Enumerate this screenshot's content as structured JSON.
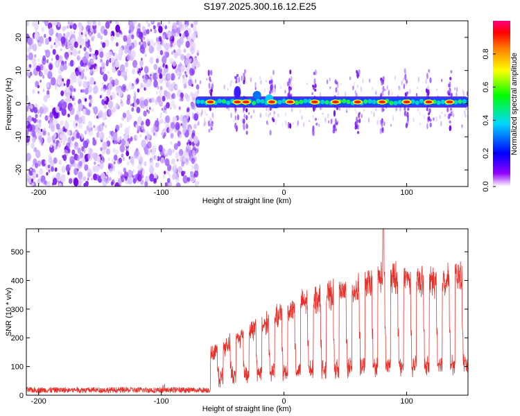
{
  "title": "S197.2025.300.16.12.E25",
  "chart_data": [
    {
      "type": "heatmap",
      "name": "spectrogram",
      "xlabel": "Height of straight line (km)",
      "ylabel": "Frequency (Hz)",
      "xlim": [
        -210,
        150
      ],
      "ylim": [
        -25,
        25
      ],
      "xticks": [
        -200,
        -100,
        0,
        100
      ],
      "yticks": [
        -20,
        -10,
        0,
        10,
        20
      ],
      "noise_region": [
        -210,
        -72
      ],
      "signal_start": -72,
      "signal_center_freq": 0.5,
      "colorbar": {
        "label": "Normalized spectral amplitude",
        "range": [
          0,
          1
        ],
        "ticks": [
          "0.0",
          "0.2",
          "0.4",
          "0.6",
          "0.8"
        ],
        "colors": [
          "#ffffff",
          "#8000ff",
          "#0000ff",
          "#00ffff",
          "#00ff00",
          "#ffff00",
          "#ff8000",
          "#ff0000",
          "#ff0080"
        ]
      },
      "signal_clusters_x": [
        -60,
        -38,
        -31,
        -10,
        5,
        25,
        42,
        60,
        80,
        100,
        118,
        135
      ]
    },
    {
      "type": "line",
      "name": "snr",
      "xlabel": "Height of straight line (km)",
      "ylabel": "SNR (10 * v/v)",
      "xlim": [
        -210,
        150
      ],
      "ylim": [
        0,
        580
      ],
      "xticks": [
        -200,
        -100,
        0,
        100
      ],
      "yticks": [
        0,
        100,
        200,
        300,
        400,
        500
      ],
      "color": "#e8302a",
      "series": [
        {
          "name": "noise floor",
          "x_range": [
            -210,
            -60
          ],
          "mean": 18,
          "spread": 10
        },
        {
          "name": "signal envelope",
          "x": [
            -60,
            -40,
            -20,
            0,
            20,
            40,
            60,
            80,
            100,
            120,
            150
          ],
          "values": [
            150,
            210,
            260,
            310,
            360,
            380,
            400,
            450,
            440,
            430,
            460
          ]
        },
        {
          "name": "dropout minima",
          "x": [
            -60,
            -40,
            -20,
            0,
            20,
            40,
            60,
            80,
            100,
            120,
            150
          ],
          "values": [
            40,
            50,
            60,
            60,
            70,
            70,
            80,
            80,
            80,
            80,
            90
          ]
        }
      ],
      "peak": {
        "x": 81,
        "y": 580
      }
    }
  ]
}
